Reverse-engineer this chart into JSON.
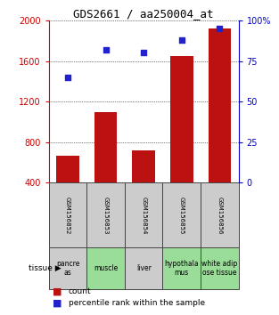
{
  "title": "GDS2661 / aa250004_at",
  "categories": [
    "GSM156852",
    "GSM156853",
    "GSM156854",
    "GSM156855",
    "GSM156856"
  ],
  "counts": [
    670,
    1100,
    720,
    1650,
    1920
  ],
  "percentiles": [
    65,
    82,
    80,
    88,
    95
  ],
  "bar_color": "#bb1111",
  "dot_color": "#2222cc",
  "ylim_left": [
    400,
    2000
  ],
  "ylim_right": [
    0,
    100
  ],
  "yticks_left": [
    400,
    800,
    1200,
    1600,
    2000
  ],
  "yticks_right": [
    0,
    25,
    50,
    75,
    100
  ],
  "tissue_labels": [
    "pancre\nas",
    "muscle",
    "liver",
    "hypothala\nmus",
    "white adip\nose tissue"
  ],
  "tissue_colors": [
    "#cccccc",
    "#99dd99",
    "#cccccc",
    "#99dd99",
    "#99dd99"
  ],
  "gsm_bg_color": "#cccccc",
  "legend_count_label": "count",
  "legend_percentile_label": "percentile rank within the sample",
  "bar_bottom": 400,
  "background_color": "#ffffff",
  "left_axis_color": "#cc0000",
  "right_axis_color": "#0000cc",
  "grid_linestyle": "dotted",
  "grid_color": "#000000",
  "title_fontsize": 9,
  "tick_fontsize": 7,
  "legend_fontsize": 6.5,
  "tissue_fontsize": 5.5,
  "gsm_fontsize": 5.0
}
